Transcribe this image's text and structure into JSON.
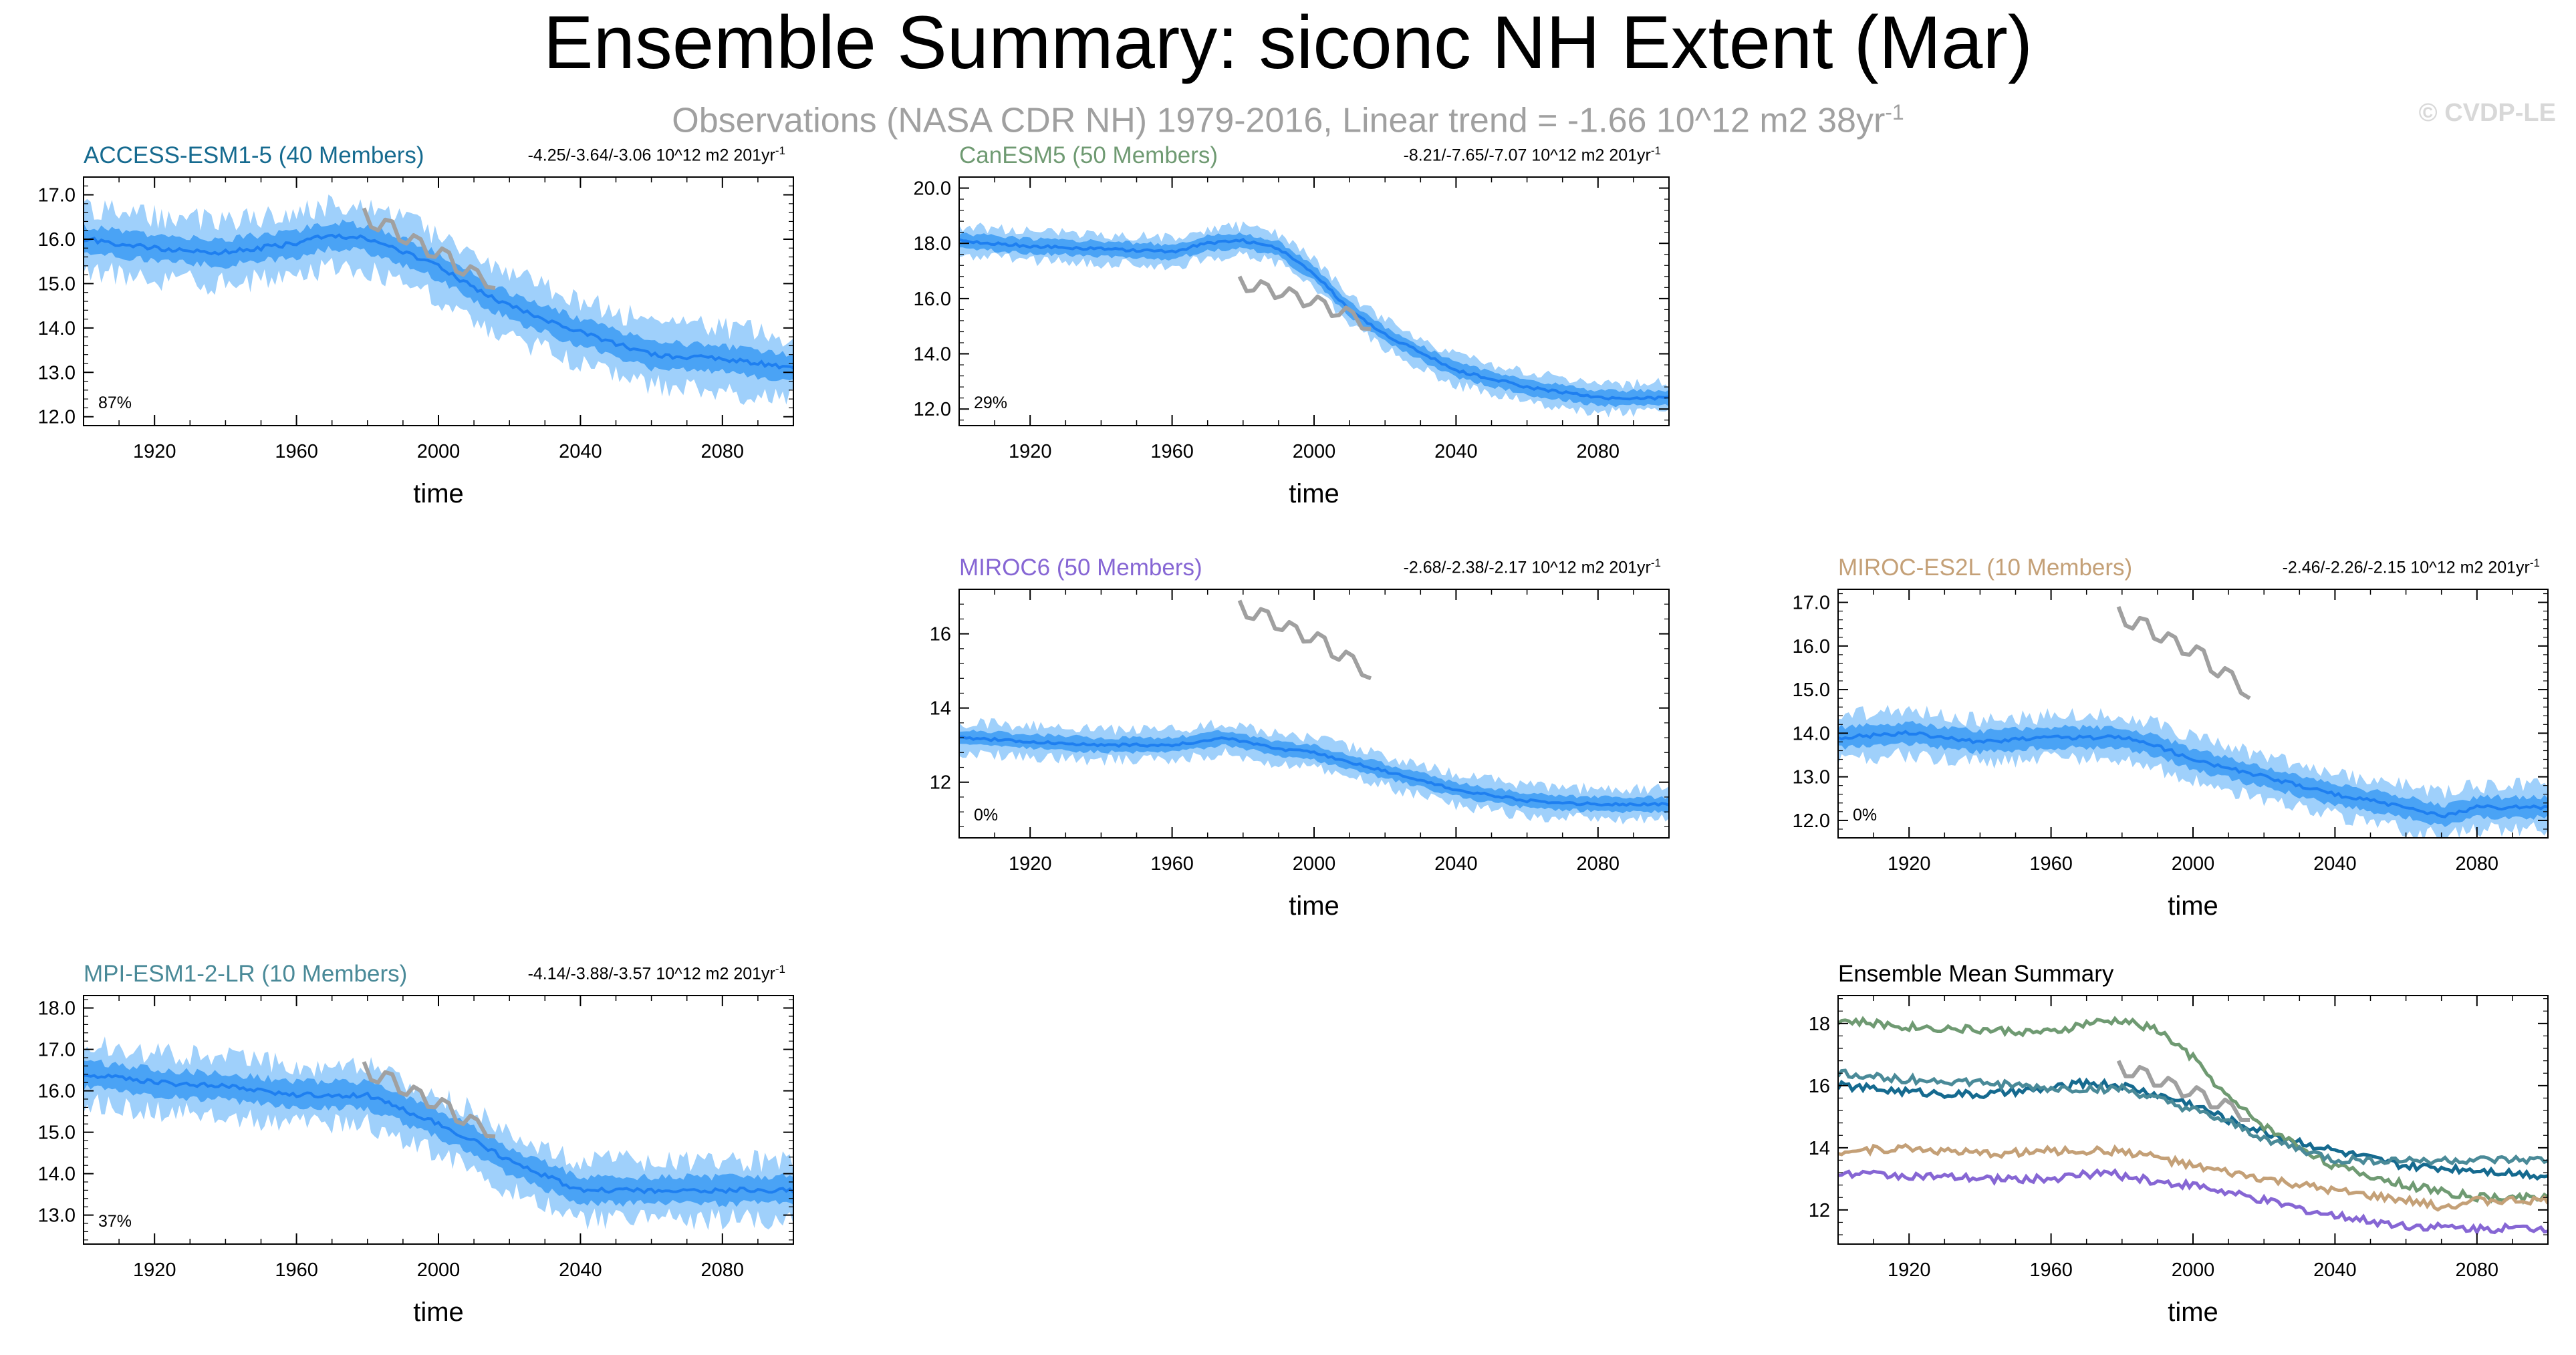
{
  "title": "Ensemble Summary: siconc NH Extent (Mar)",
  "subtitle": "Observations (NASA CDR NH) 1979-2016, Linear trend = -1.66 10^12 m2 38yr",
  "subtitle_sup": "-1",
  "credit": "© CVDP-LE",
  "colors": {
    "band_outer": "#9fd0fb",
    "band_inner": "#4aa3f5",
    "mean": "#1e7ff0",
    "obs": "#a0a0a0"
  },
  "chart_data": [
    {
      "id": "access",
      "type": "area",
      "title": "ACCESS-ESM1-5 (40 Members)",
      "title_color": "#156a8f",
      "trend": "-4.25/-3.64/-3.06 10^12 m2 201yr",
      "trend_sup": "-1",
      "percent": "87%",
      "xlabel": "time",
      "ylabel": "",
      "xlim": [
        1900,
        2100
      ],
      "ylim": [
        11.8,
        17.4
      ],
      "yticks": [
        12.0,
        13.0,
        14.0,
        15.0,
        16.0,
        17.0
      ],
      "ytick_labels": [
        "12.0",
        "13.0",
        "14.0",
        "15.0",
        "16.0",
        "17.0"
      ],
      "xticks": [
        1920,
        1960,
        2000,
        2040,
        2080
      ],
      "xtick_labels": [
        "1920",
        "1960",
        "2000",
        "2040",
        "2080"
      ],
      "mean": {
        "x": [
          1900,
          1920,
          1940,
          1960,
          1970,
          1980,
          1990,
          2000,
          2010,
          2020,
          2040,
          2060,
          2080,
          2100
        ],
        "y": [
          16.0,
          15.8,
          15.7,
          15.9,
          16.1,
          16.0,
          15.7,
          15.4,
          14.9,
          14.5,
          13.9,
          13.4,
          13.3,
          13.1
        ]
      },
      "inner_halfwidth": 0.28,
      "outer_halfwidth": 0.6,
      "obs": {
        "x": [
          1979,
          1983,
          1987,
          1991,
          1995,
          1999,
          2003,
          2007,
          2011,
          2016
        ],
        "y": [
          16.7,
          16.2,
          16.4,
          15.9,
          16.0,
          15.6,
          15.7,
          15.2,
          15.3,
          14.9
        ]
      }
    },
    {
      "id": "canesm",
      "type": "area",
      "title": "CanESM5 (50 Members)",
      "title_color": "#6f9a72",
      "trend": "-8.21/-7.65/-7.07 10^12 m2 201yr",
      "trend_sup": "-1",
      "percent": "29%",
      "xlabel": "time",
      "ylabel": "",
      "xlim": [
        1900,
        2100
      ],
      "ylim": [
        11.4,
        20.4
      ],
      "yticks": [
        12.0,
        14.0,
        16.0,
        18.0,
        20.0
      ],
      "ytick_labels": [
        "12.0",
        "14.0",
        "16.0",
        "18.0",
        "20.0"
      ],
      "xticks": [
        1920,
        1960,
        2000,
        2040,
        2080
      ],
      "xtick_labels": [
        "1920",
        "1960",
        "2000",
        "2040",
        "2080"
      ],
      "mean": {
        "x": [
          1900,
          1920,
          1940,
          1960,
          1970,
          1980,
          1990,
          2000,
          2010,
          2020,
          2040,
          2060,
          2080,
          2100
        ],
        "y": [
          18.1,
          17.9,
          17.8,
          17.7,
          18.0,
          18.1,
          17.8,
          16.9,
          15.6,
          14.7,
          13.4,
          12.8,
          12.4,
          12.4
        ]
      },
      "inner_halfwidth": 0.25,
      "outer_halfwidth": 0.45,
      "obs": {
        "x": [
          1979,
          1983,
          1987,
          1991,
          1995,
          1999,
          2003,
          2007,
          2011,
          2016
        ],
        "y": [
          16.8,
          16.3,
          16.5,
          16.1,
          16.2,
          15.8,
          15.9,
          15.4,
          15.5,
          14.9
        ]
      }
    },
    {
      "id": "miroc6",
      "type": "area",
      "title": "MIROC6 (50 Members)",
      "title_color": "#8666d4",
      "trend": "-2.68/-2.38/-2.17 10^12 m2 201yr",
      "trend_sup": "-1",
      "percent": "0%",
      "xlabel": "time",
      "ylabel": "",
      "xlim": [
        1900,
        2100
      ],
      "ylim": [
        10.5,
        17.2
      ],
      "yticks": [
        12,
        14,
        16
      ],
      "ytick_labels": [
        "12",
        "14",
        "16"
      ],
      "xticks": [
        1920,
        1960,
        2000,
        2040,
        2080
      ],
      "xtick_labels": [
        "1920",
        "1960",
        "2000",
        "2040",
        "2080"
      ],
      "mean": {
        "x": [
          1900,
          1920,
          1940,
          1960,
          1975,
          1990,
          2000,
          2020,
          2040,
          2060,
          2080,
          2100
        ],
        "y": [
          13.2,
          13.1,
          13.0,
          13.0,
          13.2,
          12.9,
          12.8,
          12.3,
          11.8,
          11.5,
          11.4,
          11.4
        ]
      },
      "inner_halfwidth": 0.18,
      "outer_halfwidth": 0.35,
      "obs": {
        "x": [
          1979,
          1983,
          1987,
          1991,
          1995,
          1999,
          2003,
          2007,
          2011,
          2016
        ],
        "y": [
          16.9,
          16.4,
          16.6,
          16.1,
          16.2,
          15.8,
          15.9,
          15.3,
          15.4,
          14.8
        ]
      }
    },
    {
      "id": "mirocesl",
      "type": "area",
      "title": "MIROC-ES2L (10 Members)",
      "title_color": "#c4a077",
      "trend": "-2.46/-2.26/-2.15 10^12 m2 201yr",
      "trend_sup": "-1",
      "percent": "0%",
      "xlabel": "time",
      "ylabel": "",
      "xlim": [
        1900,
        2100
      ],
      "ylim": [
        11.6,
        17.3
      ],
      "yticks": [
        12.0,
        13.0,
        14.0,
        15.0,
        16.0,
        17.0
      ],
      "ytick_labels": [
        "12.0",
        "13.0",
        "14.0",
        "15.0",
        "16.0",
        "17.0"
      ],
      "xticks": [
        1920,
        1960,
        2000,
        2040,
        2080
      ],
      "xtick_labels": [
        "1920",
        "1960",
        "2000",
        "2040",
        "2080"
      ],
      "mean": {
        "x": [
          1900,
          1920,
          1940,
          1960,
          1980,
          1990,
          2000,
          2020,
          2040,
          2060,
          2070,
          2080,
          2100
        ],
        "y": [
          13.9,
          14.0,
          13.8,
          13.9,
          13.9,
          13.7,
          13.4,
          13.0,
          12.6,
          12.3,
          12.1,
          12.3,
          12.3
        ]
      },
      "inner_halfwidth": 0.22,
      "outer_halfwidth": 0.42,
      "obs": {
        "x": [
          1979,
          1983,
          1987,
          1991,
          1995,
          1999,
          2003,
          2007,
          2011,
          2016
        ],
        "y": [
          16.9,
          16.4,
          16.6,
          16.1,
          16.2,
          15.8,
          15.9,
          15.3,
          15.4,
          14.8
        ]
      }
    },
    {
      "id": "mpi",
      "type": "area",
      "title": "MPI-ESM1-2-LR (10 Members)",
      "title_color": "#4a8a98",
      "trend": "-4.14/-3.88/-3.57 10^12 m2 201yr",
      "trend_sup": "-1",
      "percent": "37%",
      "xlabel": "time",
      "ylabel": "",
      "xlim": [
        1900,
        2100
      ],
      "ylim": [
        12.3,
        18.3
      ],
      "yticks": [
        13.0,
        14.0,
        15.0,
        16.0,
        17.0,
        18.0
      ],
      "ytick_labels": [
        "13.0",
        "14.0",
        "15.0",
        "16.0",
        "17.0",
        "18.0"
      ],
      "xticks": [
        1920,
        1960,
        2000,
        2040,
        2080
      ],
      "xtick_labels": [
        "1920",
        "1960",
        "2000",
        "2040",
        "2080"
      ],
      "mean": {
        "x": [
          1900,
          1920,
          1940,
          1960,
          1980,
          2000,
          2010,
          2020,
          2040,
          2060,
          2080,
          2100
        ],
        "y": [
          16.4,
          16.2,
          16.1,
          15.9,
          15.9,
          15.2,
          14.8,
          14.3,
          13.6,
          13.6,
          13.6,
          13.6
        ]
      },
      "inner_halfwidth": 0.3,
      "outer_halfwidth": 0.6,
      "obs": {
        "x": [
          1979,
          1983,
          1987,
          1991,
          1995,
          1999,
          2003,
          2007,
          2011,
          2016
        ],
        "y": [
          16.7,
          16.2,
          16.4,
          15.9,
          16.0,
          15.6,
          15.7,
          15.2,
          15.3,
          14.9
        ]
      }
    },
    {
      "id": "summary",
      "type": "line",
      "title": "Ensemble Mean Summary",
      "title_color": "#000000",
      "trend": "",
      "trend_sup": "",
      "percent": "",
      "xlabel": "time",
      "ylabel": "",
      "xlim": [
        1900,
        2100
      ],
      "ylim": [
        10.9,
        18.9
      ],
      "yticks": [
        12,
        14,
        16,
        18
      ],
      "ytick_labels": [
        "12",
        "14",
        "16",
        "18"
      ],
      "xticks": [
        1920,
        1960,
        2000,
        2040,
        2080
      ],
      "xtick_labels": [
        "1920",
        "1960",
        "2000",
        "2040",
        "2080"
      ],
      "series": [
        {
          "color": "#156a8f",
          "x": [
            1900,
            1920,
            1940,
            1960,
            1970,
            1980,
            1990,
            2000,
            2010,
            2020,
            2040,
            2060,
            2080,
            2100
          ],
          "y": [
            16.0,
            15.8,
            15.7,
            15.9,
            16.1,
            16.0,
            15.7,
            15.4,
            14.9,
            14.5,
            13.9,
            13.4,
            13.3,
            13.1
          ]
        },
        {
          "color": "#6f9a72",
          "x": [
            1900,
            1920,
            1940,
            1960,
            1970,
            1980,
            1990,
            2000,
            2010,
            2020,
            2040,
            2060,
            2080,
            2100
          ],
          "y": [
            18.1,
            17.9,
            17.8,
            17.7,
            18.0,
            18.1,
            17.8,
            16.9,
            15.6,
            14.7,
            13.4,
            12.8,
            12.4,
            12.4
          ]
        },
        {
          "color": "#8666d4",
          "x": [
            1900,
            1920,
            1940,
            1960,
            1975,
            1990,
            2000,
            2020,
            2040,
            2060,
            2080,
            2100
          ],
          "y": [
            13.2,
            13.1,
            13.0,
            13.0,
            13.2,
            12.9,
            12.8,
            12.3,
            11.8,
            11.5,
            11.4,
            11.4
          ]
        },
        {
          "color": "#c4a077",
          "x": [
            1900,
            1920,
            1940,
            1960,
            1980,
            1990,
            2000,
            2020,
            2040,
            2060,
            2070,
            2080,
            2100
          ],
          "y": [
            13.9,
            14.0,
            13.8,
            13.9,
            13.9,
            13.7,
            13.4,
            13.0,
            12.6,
            12.3,
            12.1,
            12.3,
            12.3
          ]
        },
        {
          "color": "#4a8a98",
          "x": [
            1900,
            1920,
            1940,
            1960,
            1980,
            2000,
            2010,
            2020,
            2040,
            2060,
            2080,
            2100
          ],
          "y": [
            16.4,
            16.2,
            16.1,
            15.9,
            15.9,
            15.2,
            14.8,
            14.3,
            13.6,
            13.6,
            13.6,
            13.6
          ]
        }
      ],
      "obs": {
        "x": [
          1979,
          1983,
          1987,
          1991,
          1995,
          1999,
          2003,
          2007,
          2011,
          2016
        ],
        "y": [
          16.8,
          16.3,
          16.5,
          16.0,
          16.1,
          15.7,
          15.8,
          15.3,
          15.4,
          14.9
        ]
      }
    }
  ]
}
